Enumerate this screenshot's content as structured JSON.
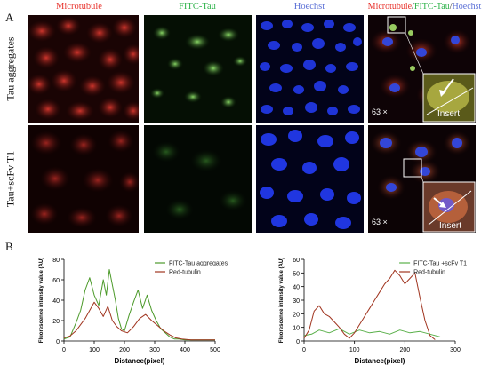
{
  "panel_a_letter": "A",
  "panel_b_letter": "B",
  "columns": [
    {
      "label": "Microtubule",
      "color": "#e8342e"
    },
    {
      "label": "FITC-Tau",
      "color": "#2eb34a"
    },
    {
      "label": "Hoechst",
      "color": "#5a6fd6"
    }
  ],
  "merge_header": {
    "part1": "Microtubule",
    "sep1": "/",
    "part2": "FITC-Tau",
    "sep2": "/",
    "part3": "Hoechst"
  },
  "rows": [
    {
      "label": "Tau aggregates",
      "magnification": "63 ×",
      "insert_label": "Insert"
    },
    {
      "label": "Tau+scFv T1",
      "magnification": "63 ×",
      "insert_label": "Insert"
    }
  ],
  "colors": {
    "red_channel": "#c4262a",
    "green_channel": "#3fbf3f",
    "blue_channel": "#2a3fe6",
    "green_trace": "#4c9a2a",
    "red_trace": "#a0341f"
  },
  "chart_data": [
    {
      "type": "line",
      "xlabel": "Distance(pixel)",
      "ylabel": "Fluorescence intensity value (AU)",
      "xlim": [
        0,
        500
      ],
      "ylim": [
        0,
        80
      ],
      "xticks": [
        0,
        100,
        200,
        300,
        400,
        500
      ],
      "yticks": [
        0,
        20,
        40,
        60,
        80
      ],
      "legend_position": "top-right",
      "series": [
        {
          "name": "FITC-Tau aggregates",
          "color": "#4c9a2a",
          "x": [
            0,
            20,
            40,
            55,
            70,
            85,
            100,
            115,
            130,
            140,
            150,
            160,
            170,
            180,
            190,
            200,
            215,
            230,
            245,
            260,
            275,
            290,
            305,
            320,
            335,
            350,
            365,
            380,
            400,
            450,
            500
          ],
          "y": [
            2,
            4,
            18,
            30,
            50,
            62,
            45,
            35,
            60,
            45,
            70,
            55,
            40,
            22,
            12,
            10,
            25,
            38,
            50,
            32,
            45,
            30,
            20,
            12,
            8,
            4,
            2,
            2,
            1,
            1,
            1
          ]
        },
        {
          "name": "Red-tubulin",
          "color": "#a0341f",
          "x": [
            0,
            20,
            40,
            55,
            70,
            85,
            100,
            115,
            130,
            145,
            160,
            175,
            190,
            210,
            230,
            250,
            270,
            290,
            310,
            330,
            350,
            370,
            390,
            420,
            460,
            500
          ],
          "y": [
            3,
            5,
            10,
            16,
            22,
            30,
            38,
            32,
            24,
            34,
            20,
            14,
            10,
            8,
            14,
            22,
            26,
            20,
            15,
            10,
            6,
            3,
            2,
            1,
            1,
            1
          ]
        }
      ]
    },
    {
      "type": "line",
      "xlabel": "Distance(pixel)",
      "ylabel": "Fluorescence intensity value (AU)",
      "xlim": [
        0,
        300
      ],
      "ylim": [
        0,
        60
      ],
      "xticks": [
        0,
        100,
        200,
        300
      ],
      "yticks": [
        0,
        10,
        20,
        30,
        40,
        50,
        60
      ],
      "legend_position": "top-right",
      "series": [
        {
          "name": "FITC-Tau +scFv T1",
          "color": "#5ab04a",
          "x": [
            0,
            15,
            30,
            50,
            70,
            90,
            110,
            130,
            150,
            170,
            190,
            210,
            230,
            250,
            270
          ],
          "y": [
            4,
            5,
            8,
            6,
            9,
            5,
            8,
            6,
            7,
            5,
            8,
            6,
            7,
            5,
            3
          ]
        },
        {
          "name": "Red-tubulin",
          "color": "#a0341f",
          "x": [
            0,
            10,
            20,
            30,
            40,
            50,
            60,
            70,
            80,
            90,
            100,
            110,
            120,
            130,
            140,
            150,
            160,
            170,
            180,
            190,
            200,
            210,
            220,
            230,
            240,
            250,
            260
          ],
          "y": [
            2,
            8,
            22,
            26,
            20,
            18,
            14,
            10,
            5,
            2,
            6,
            12,
            18,
            24,
            30,
            36,
            42,
            46,
            52,
            48,
            42,
            46,
            50,
            32,
            15,
            4,
            1
          ]
        }
      ]
    }
  ]
}
